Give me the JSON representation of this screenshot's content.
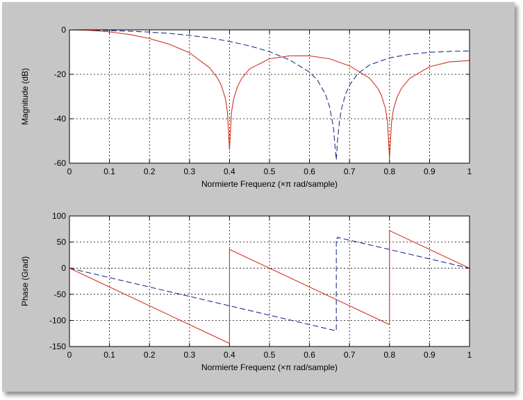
{
  "chart_data": [
    {
      "type": "line",
      "xlabel": "Normierte Frequenz  (×π rad/sample)",
      "ylabel": "Magnitude (dB)",
      "xlim": [
        0,
        1
      ],
      "ylim": [
        -60,
        0
      ],
      "xticks": [
        "0",
        "0.1",
        "0.2",
        "0.3",
        "0.4",
        "0.5",
        "0.6",
        "0.7",
        "0.8",
        "0.9",
        "1"
      ],
      "yticks": [
        "0",
        "-20",
        "-40",
        "-60"
      ],
      "grid": true,
      "series": [
        {
          "style": "dashed",
          "color": "#1c2c8c",
          "x": [
            0,
            0.05,
            0.1,
            0.15,
            0.2,
            0.25,
            0.3,
            0.35,
            0.4,
            0.45,
            0.5,
            0.55,
            0.6,
            0.62,
            0.64,
            0.65,
            0.66,
            0.665,
            0.667,
            0.67,
            0.675,
            0.68,
            0.69,
            0.7,
            0.72,
            0.75,
            0.8,
            0.85,
            0.9,
            0.95,
            1.0
          ],
          "y": [
            0,
            -0.1,
            -0.3,
            -0.6,
            -1.0,
            -1.6,
            -2.5,
            -3.6,
            -5.2,
            -7.2,
            -9.8,
            -13.5,
            -19,
            -22.7,
            -29,
            -34.5,
            -44,
            -55,
            -58.5,
            -50,
            -41,
            -35.5,
            -29,
            -24.9,
            -19.8,
            -15.8,
            -12.6,
            -11.0,
            -10.1,
            -9.7,
            -9.5
          ]
        },
        {
          "style": "solid",
          "color": "#d1321d",
          "x": [
            0,
            0.05,
            0.1,
            0.15,
            0.2,
            0.25,
            0.3,
            0.35,
            0.37,
            0.38,
            0.39,
            0.395,
            0.4,
            0.405,
            0.41,
            0.42,
            0.43,
            0.45,
            0.5,
            0.55,
            0.6,
            0.65,
            0.7,
            0.75,
            0.77,
            0.78,
            0.79,
            0.795,
            0.8,
            0.805,
            0.81,
            0.82,
            0.83,
            0.85,
            0.9,
            0.95,
            1.0
          ],
          "y": [
            0,
            -0.2,
            -0.9,
            -2.1,
            -3.9,
            -6.5,
            -10.3,
            -17.0,
            -21.6,
            -25.2,
            -31.1,
            -37.1,
            -54,
            -37.3,
            -31.4,
            -25.5,
            -22.0,
            -17.6,
            -13.0,
            -11.7,
            -11.7,
            -13.0,
            -16.2,
            -21.7,
            -26.1,
            -29.6,
            -35.5,
            -41.5,
            -58,
            -41.6,
            -35.6,
            -29.8,
            -26.3,
            -21.9,
            -16.6,
            -14.4,
            -13.8
          ]
        }
      ]
    },
    {
      "type": "line",
      "xlabel": "Normierte Frequenz  (×π rad/sample)",
      "ylabel": "Phase (Grad)",
      "xlim": [
        0,
        1
      ],
      "ylim": [
        -150,
        100
      ],
      "xticks": [
        "0",
        "0.1",
        "0.2",
        "0.3",
        "0.4",
        "0.5",
        "0.6",
        "0.7",
        "0.8",
        "0.9",
        "1"
      ],
      "yticks": [
        "100",
        "50",
        "0",
        "-50",
        "-100",
        "-150"
      ],
      "grid": true,
      "series": [
        {
          "style": "dashed",
          "color": "#1c2c8c",
          "x": [
            0,
            0.4,
            0.4,
            0.667,
            0.667,
            0.67,
            0.67,
            1.0
          ],
          "y": [
            0,
            -72,
            -72,
            -120,
            57,
            57,
            59,
            0
          ]
        },
        {
          "style": "solid",
          "color": "#d1321d",
          "x": [
            0,
            0.4,
            0.4,
            0.8,
            0.8,
            1.0
          ],
          "y": [
            0,
            -144,
            36,
            -108,
            72,
            0
          ]
        }
      ]
    }
  ]
}
